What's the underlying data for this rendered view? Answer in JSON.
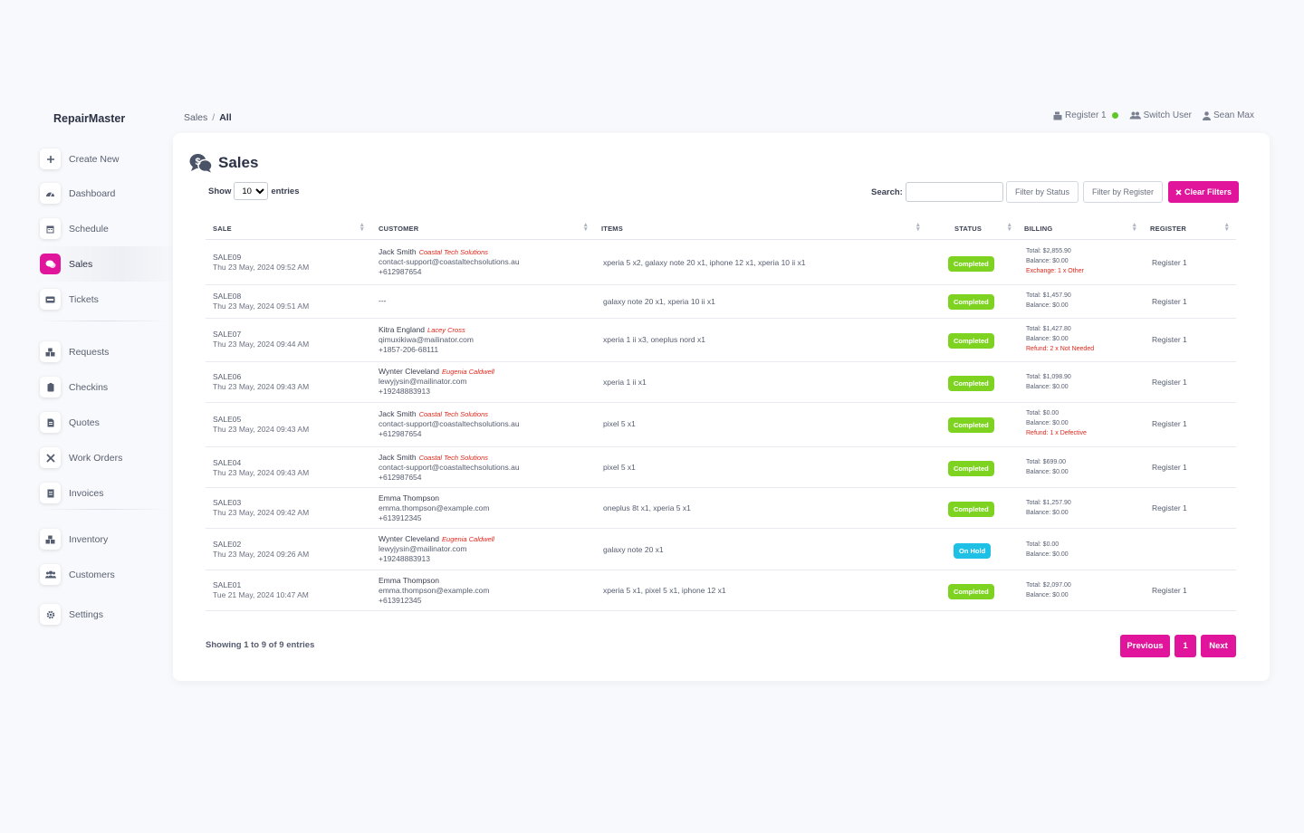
{
  "app": {
    "brand": "RepairMaster"
  },
  "breadcrumb": {
    "section": "Sales",
    "separator": "/",
    "current": "All"
  },
  "topbar": {
    "register": "Register 1",
    "switch_user": "Switch User",
    "user": "Sean Max"
  },
  "sidebar": {
    "items": [
      {
        "label": "Create New",
        "icon": "plus-icon"
      },
      {
        "label": "Dashboard",
        "icon": "gauge-icon"
      },
      {
        "label": "Schedule",
        "icon": "calendar-icon"
      },
      {
        "label": "Sales",
        "icon": "chat-dollar-icon",
        "active": true
      },
      {
        "label": "Tickets",
        "icon": "ticket-icon"
      },
      {
        "label": "Requests",
        "icon": "boxes-icon"
      },
      {
        "label": "Checkins",
        "icon": "clipboard-icon"
      },
      {
        "label": "Quotes",
        "icon": "file-invoice-icon"
      },
      {
        "label": "Work Orders",
        "icon": "tools-icon"
      },
      {
        "label": "Invoices",
        "icon": "receipt-icon"
      },
      {
        "label": "Inventory",
        "icon": "warehouse-icon"
      },
      {
        "label": "Customers",
        "icon": "users-icon"
      },
      {
        "label": "Settings",
        "icon": "gear-icon"
      }
    ]
  },
  "page": {
    "title": "Sales"
  },
  "controls": {
    "show_label": "Show",
    "page_size": "10",
    "entries_label": "entries",
    "search_label": "Search:",
    "filter_status": "Filter by Status",
    "filter_register": "Filter by Register",
    "clear_filters": "Clear Filters"
  },
  "table": {
    "headers": {
      "sale": "SALE",
      "customer": "CUSTOMER",
      "items": "ITEMS",
      "status": "STATUS",
      "billing": "BILLING",
      "register": "REGISTER"
    },
    "rows": [
      {
        "id": "SALE09",
        "date": "Thu 23 May, 2024 09:52 AM",
        "name": "Jack Smith",
        "company": "Coastal Tech Solutions",
        "email": "contact-support@coastaltechsolutions.au",
        "phone": "+612987654",
        "items": "xperia 5 x2, galaxy note 20 x1, iphone 12 x1, xperia 10 ii x1",
        "status": "Completed",
        "total": "Total: $2,855.90",
        "balance": "Balance: $0.00",
        "note": "Exchange: 1 x Other",
        "register": "Register 1"
      },
      {
        "id": "SALE08",
        "date": "Thu 23 May, 2024 09:51 AM",
        "name": "---",
        "company": "",
        "email": "",
        "phone": "",
        "items": "galaxy note 20 x1, xperia 10 ii x1",
        "status": "Completed",
        "total": "Total: $1,457.90",
        "balance": "Balance: $0.00",
        "note": "",
        "register": "Register 1"
      },
      {
        "id": "SALE07",
        "date": "Thu 23 May, 2024 09:44 AM",
        "name": "Kitra England",
        "company": "Lacey Cross",
        "email": "qimuxikiwa@mailinator.com",
        "phone": "+1857-206-68111",
        "items": "xperia 1 ii x3, oneplus nord x1",
        "status": "Completed",
        "total": "Total: $1,427.80",
        "balance": "Balance: $0.00",
        "note": "Refund: 2 x Not Needed",
        "register": "Register 1"
      },
      {
        "id": "SALE06",
        "date": "Thu 23 May, 2024 09:43 AM",
        "name": "Wynter Cleveland",
        "company": "Eugenia Caldwell",
        "email": "lewyjysin@mailinator.com",
        "phone": "+19248883913",
        "items": "xperia 1 ii x1",
        "status": "Completed",
        "total": "Total: $1,098.90",
        "balance": "Balance: $0.00",
        "note": "",
        "register": "Register 1"
      },
      {
        "id": "SALE05",
        "date": "Thu 23 May, 2024 09:43 AM",
        "name": "Jack Smith",
        "company": "Coastal Tech Solutions",
        "email": "contact-support@coastaltechsolutions.au",
        "phone": "+612987654",
        "items": "pixel 5 x1",
        "status": "Completed",
        "total": "Total: $0.00",
        "balance": "Balance: $0.00",
        "note": "Refund: 1 x Defective",
        "register": "Register 1"
      },
      {
        "id": "SALE04",
        "date": "Thu 23 May, 2024 09:43 AM",
        "name": "Jack Smith",
        "company": "Coastal Tech Solutions",
        "email": "contact-support@coastaltechsolutions.au",
        "phone": "+612987654",
        "items": "pixel 5 x1",
        "status": "Completed",
        "total": "Total: $699.00",
        "balance": "Balance: $0.00",
        "note": "",
        "register": "Register 1"
      },
      {
        "id": "SALE03",
        "date": "Thu 23 May, 2024 09:42 AM",
        "name": "Emma Thompson",
        "company": "",
        "email": "emma.thompson@example.com",
        "phone": "+613912345",
        "items": "oneplus 8t x1, xperia 5 x1",
        "status": "Completed",
        "total": "Total: $1,257.90",
        "balance": "Balance: $0.00",
        "note": "",
        "register": "Register 1"
      },
      {
        "id": "SALE02",
        "date": "Thu 23 May, 2024 09:26 AM",
        "name": "Wynter Cleveland",
        "company": "Eugenia Caldwell",
        "email": "lewyjysin@mailinator.com",
        "phone": "+19248883913",
        "items": "galaxy note 20 x1",
        "status": "On Hold",
        "total": "Total: $0.00",
        "balance": "Balance: $0.00",
        "note": "",
        "register": ""
      },
      {
        "id": "SALE01",
        "date": "Tue 21 May, 2024 10:47 AM",
        "name": "Emma Thompson",
        "company": "",
        "email": "emma.thompson@example.com",
        "phone": "+613912345",
        "items": "xperia 5 x1, pixel 5 x1, iphone 12 x1",
        "status": "Completed",
        "total": "Total: $2,097.00",
        "balance": "Balance: $0.00",
        "note": "",
        "register": "Register 1"
      }
    ]
  },
  "footer": {
    "info": "Showing 1 to 9 of 9 entries",
    "previous": "Previous",
    "page": "1",
    "next": "Next"
  },
  "colors": {
    "accent": "#e0159c",
    "completed": "#7ed321",
    "on_hold": "#1ec0e6",
    "company": "#e0261a",
    "online": "#5ec625"
  }
}
